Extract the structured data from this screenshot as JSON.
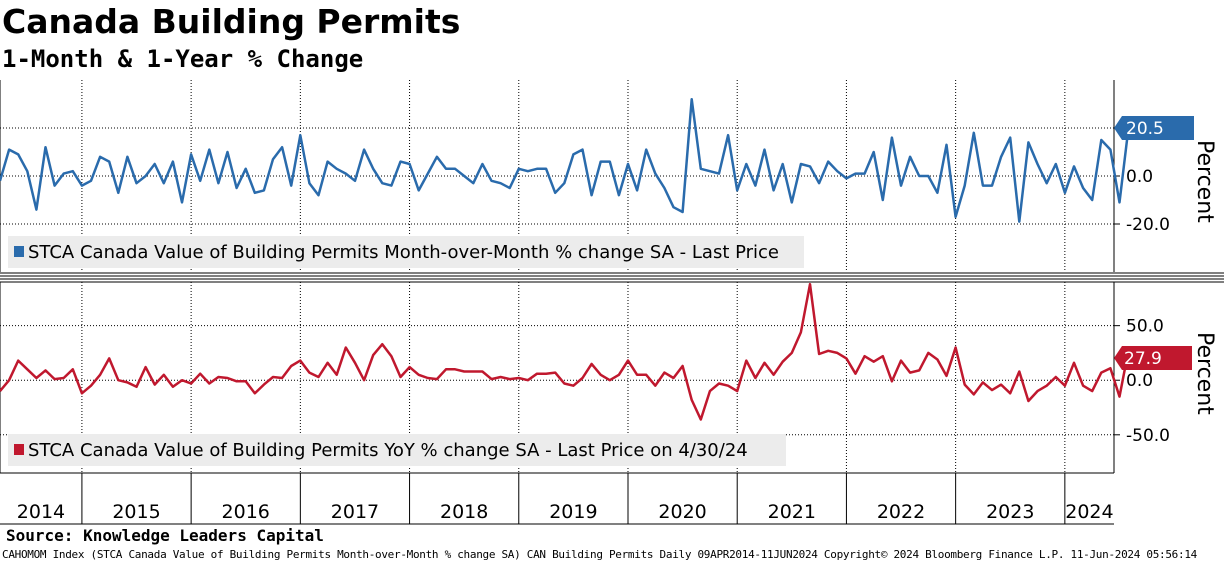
{
  "title": "Canada Building Permits",
  "subtitle": "1-Month & 1-Year % Change",
  "source": "Source: Knowledge Leaders Capital",
  "footer": "CAHOMOM Index (STCA Canada Value of Building Permits Month-over-Month % change SA) CAN Building Permits  Daily 09APR2014-11JUN2024 Copyright© 2024 Bloomberg Finance L.P. 11-Jun-2024 05:56:14",
  "colors": {
    "mom": "#2a6bac",
    "yoy": "#c0182e",
    "grid": "#000000"
  },
  "chart_data": [
    {
      "type": "line",
      "title": "STCA Canada Value of Building Permits Month-over-Month % change SA",
      "legend": "STCA Canada Value of Building Permits Month-over-Month % change SA - Last Price",
      "ylabel": "Percent",
      "ylim": [
        -40,
        40
      ],
      "yticks": [
        "20.0",
        "0.0",
        "-20.0"
      ],
      "ytick_values": [
        20,
        0,
        -20
      ],
      "last_value": "20.5",
      "x_start": 2014.25,
      "x_step_months": 1,
      "values": [
        -2,
        11,
        9,
        2,
        -14,
        12,
        -4,
        1,
        2,
        -4,
        -2,
        8,
        6,
        -7,
        8,
        -3,
        0,
        5,
        -3,
        6,
        -11,
        9,
        -2,
        11,
        -3,
        10,
        -5,
        3,
        -7,
        -6,
        7,
        12,
        -4,
        17,
        -3,
        -8,
        6,
        3,
        1,
        -2,
        11,
        3,
        -3,
        -4,
        6,
        5,
        -6,
        1,
        8,
        3,
        3,
        0,
        -3,
        5,
        -2,
        -3,
        -5,
        3,
        2,
        3,
        3,
        -7,
        -3,
        9,
        11,
        -8,
        6,
        6,
        -8,
        5,
        -6,
        11,
        1,
        -5,
        -13,
        -15,
        32,
        3,
        2,
        1,
        17,
        -6,
        5,
        -4,
        11,
        -6,
        5,
        -11,
        5,
        4,
        -3,
        6,
        2,
        -1,
        1,
        1,
        10,
        -10,
        16,
        -4,
        8,
        0,
        0,
        -7,
        13,
        -17,
        -4,
        18,
        -4,
        -4,
        8,
        16,
        -19,
        14,
        5,
        -3,
        5,
        -7,
        4,
        -5,
        -10,
        15,
        11,
        -11,
        20.5
      ]
    },
    {
      "type": "line",
      "title": "STCA Canada Value of Building Permits YoY % change SA",
      "legend": "STCA Canada Value of Building Permits YoY % change SA - Last Price on 4/30/24",
      "ylabel": "Percent",
      "ylim": [
        -85,
        90
      ],
      "yticks": [
        "50.0",
        "0.0",
        "-50.0"
      ],
      "ytick_values": [
        50,
        0,
        -50
      ],
      "last_value": "27.9",
      "x_start": 2014.25,
      "x_step_months": 1,
      "values": [
        -10,
        0,
        18,
        10,
        2,
        9,
        1,
        2,
        10,
        -12,
        -5,
        5,
        20,
        0,
        -2,
        -6,
        12,
        -4,
        5,
        -6,
        0,
        -3,
        6,
        -3,
        3,
        2,
        -1,
        -1,
        -12,
        -4,
        3,
        2,
        13,
        18,
        7,
        3,
        16,
        5,
        30,
        16,
        0,
        23,
        33,
        22,
        3,
        12,
        5,
        2,
        1,
        10,
        10,
        8,
        8,
        8,
        1,
        3,
        1,
        2,
        0,
        6,
        6,
        7,
        -3,
        -5,
        2,
        15,
        5,
        0,
        5,
        18,
        5,
        5,
        -5,
        7,
        2,
        13,
        -18,
        -36,
        -10,
        -3,
        -5,
        -10,
        18,
        2,
        16,
        5,
        17,
        25,
        44,
        88,
        24,
        27,
        25,
        20,
        6,
        22,
        17,
        22,
        -1,
        18,
        7,
        9,
        25,
        19,
        4,
        30,
        -4,
        -13,
        -2,
        -9,
        -4,
        -12,
        8,
        -19,
        -10,
        -5,
        3,
        -5,
        16,
        -5,
        -10,
        7,
        11,
        -15,
        27.9
      ]
    }
  ],
  "x_axis": {
    "year_labels": [
      "2014",
      "2015",
      "2016",
      "2017",
      "2018",
      "2019",
      "2020",
      "2021",
      "2022",
      "2023",
      "2024"
    ],
    "year_values": [
      2014,
      2015,
      2016,
      2017,
      2018,
      2019,
      2020,
      2021,
      2022,
      2023,
      2024
    ],
    "range": [
      2014.25,
      2024.45
    ]
  }
}
